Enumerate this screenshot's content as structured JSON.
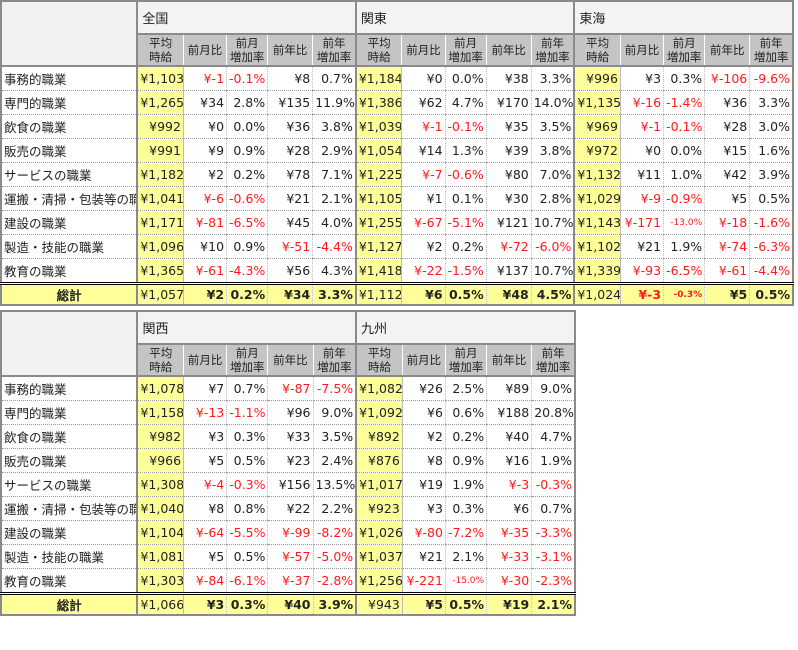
{
  "headers": {
    "avg": [
      "平均",
      "時給"
    ],
    "mom": "前月比",
    "mom_rate": [
      "前月",
      "増加率"
    ],
    "yoy": "前年比",
    "yoy_rate": [
      "前年",
      "増加率"
    ]
  },
  "occupations": [
    "事務的職業",
    "専門的職業",
    "飲食の職業",
    "販売の職業",
    "サービスの職業",
    "運搬・清掃・包装等の職業",
    "建設の職業",
    "製造・技能の職業",
    "教育の職業"
  ],
  "total_label": "総計",
  "colors": {
    "highlight": "#ffff99",
    "negative": "#ff1a1a",
    "header": "#c4c4c4"
  },
  "tables": [
    {
      "regions": [
        {
          "name": "全国",
          "rows": [
            [
              "¥1,103",
              "¥-1",
              "-0.1%",
              "¥8",
              "0.7%"
            ],
            [
              "¥1,265",
              "¥34",
              "2.8%",
              "¥135",
              "11.9%"
            ],
            [
              "¥992",
              "¥0",
              "0.0%",
              "¥36",
              "3.8%"
            ],
            [
              "¥991",
              "¥9",
              "0.9%",
              "¥28",
              "2.9%"
            ],
            [
              "¥1,182",
              "¥2",
              "0.2%",
              "¥78",
              "7.1%"
            ],
            [
              "¥1,041",
              "¥-6",
              "-0.6%",
              "¥21",
              "2.1%"
            ],
            [
              "¥1,171",
              "¥-81",
              "-6.5%",
              "¥45",
              "4.0%"
            ],
            [
              "¥1,096",
              "¥10",
              "0.9%",
              "¥-51",
              "-4.4%"
            ],
            [
              "¥1,365",
              "¥-61",
              "-4.3%",
              "¥56",
              "4.3%"
            ]
          ],
          "total": [
            "¥1,057",
            "¥2",
            "0.2%",
            "¥34",
            "3.3%"
          ]
        },
        {
          "name": "関東",
          "rows": [
            [
              "¥1,184",
              "¥0",
              "0.0%",
              "¥38",
              "3.3%"
            ],
            [
              "¥1,386",
              "¥62",
              "4.7%",
              "¥170",
              "14.0%"
            ],
            [
              "¥1,039",
              "¥-1",
              "-0.1%",
              "¥35",
              "3.5%"
            ],
            [
              "¥1,054",
              "¥14",
              "1.3%",
              "¥39",
              "3.8%"
            ],
            [
              "¥1,225",
              "¥-7",
              "-0.6%",
              "¥80",
              "7.0%"
            ],
            [
              "¥1,105",
              "¥1",
              "0.1%",
              "¥30",
              "2.8%"
            ],
            [
              "¥1,255",
              "¥-67",
              "-5.1%",
              "¥121",
              "10.7%"
            ],
            [
              "¥1,127",
              "¥2",
              "0.2%",
              "¥-72",
              "-6.0%"
            ],
            [
              "¥1,418",
              "¥-22",
              "-1.5%",
              "¥137",
              "10.7%"
            ]
          ],
          "total": [
            "¥1,112",
            "¥6",
            "0.5%",
            "¥48",
            "4.5%"
          ]
        },
        {
          "name": "東海",
          "rows": [
            [
              "¥996",
              "¥3",
              "0.3%",
              "¥-106",
              "-9.6%"
            ],
            [
              "¥1,135",
              "¥-16",
              "-1.4%",
              "¥36",
              "3.3%"
            ],
            [
              "¥969",
              "¥-1",
              "-0.1%",
              "¥28",
              "3.0%"
            ],
            [
              "¥972",
              "¥0",
              "0.0%",
              "¥15",
              "1.6%"
            ],
            [
              "¥1,132",
              "¥11",
              "1.0%",
              "¥42",
              "3.9%"
            ],
            [
              "¥1,029",
              "¥-9",
              "-0.9%",
              "¥5",
              "0.5%"
            ],
            [
              "¥1,143",
              "¥-171",
              "-13.0%",
              "¥-18",
              "-1.6%"
            ],
            [
              "¥1,102",
              "¥21",
              "1.9%",
              "¥-74",
              "-6.3%"
            ],
            [
              "¥1,339",
              "¥-93",
              "-6.5%",
              "¥-61",
              "-4.4%"
            ]
          ],
          "total": [
            "¥1,024",
            "¥-3",
            "-0.3%",
            "¥5",
            "0.5%"
          ]
        }
      ]
    },
    {
      "regions": [
        {
          "name": "関西",
          "rows": [
            [
              "¥1,078",
              "¥7",
              "0.7%",
              "¥-87",
              "-7.5%"
            ],
            [
              "¥1,158",
              "¥-13",
              "-1.1%",
              "¥96",
              "9.0%"
            ],
            [
              "¥982",
              "¥3",
              "0.3%",
              "¥33",
              "3.5%"
            ],
            [
              "¥966",
              "¥5",
              "0.5%",
              "¥23",
              "2.4%"
            ],
            [
              "¥1,308",
              "¥-4",
              "-0.3%",
              "¥156",
              "13.5%"
            ],
            [
              "¥1,040",
              "¥8",
              "0.8%",
              "¥22",
              "2.2%"
            ],
            [
              "¥1,104",
              "¥-64",
              "-5.5%",
              "¥-99",
              "-8.2%"
            ],
            [
              "¥1,081",
              "¥5",
              "0.5%",
              "¥-57",
              "-5.0%"
            ],
            [
              "¥1,303",
              "¥-84",
              "-6.1%",
              "¥-37",
              "-2.8%"
            ]
          ],
          "total": [
            "¥1,066",
            "¥3",
            "0.3%",
            "¥40",
            "3.9%"
          ]
        },
        {
          "name": "九州",
          "rows": [
            [
              "¥1,082",
              "¥26",
              "2.5%",
              "¥89",
              "9.0%"
            ],
            [
              "¥1,092",
              "¥6",
              "0.6%",
              "¥188",
              "20.8%"
            ],
            [
              "¥892",
              "¥2",
              "0.2%",
              "¥40",
              "4.7%"
            ],
            [
              "¥876",
              "¥8",
              "0.9%",
              "¥16",
              "1.9%"
            ],
            [
              "¥1,017",
              "¥19",
              "1.9%",
              "¥-3",
              "-0.3%"
            ],
            [
              "¥923",
              "¥3",
              "0.3%",
              "¥6",
              "0.7%"
            ],
            [
              "¥1,026",
              "¥-80",
              "-7.2%",
              "¥-35",
              "-3.3%"
            ],
            [
              "¥1,037",
              "¥21",
              "2.1%",
              "¥-33",
              "-3.1%"
            ],
            [
              "¥1,256",
              "¥-221",
              "-15.0%",
              "¥-30",
              "-2.3%"
            ]
          ],
          "total": [
            "¥943",
            "¥5",
            "0.5%",
            "¥19",
            "2.1%"
          ]
        }
      ]
    }
  ]
}
